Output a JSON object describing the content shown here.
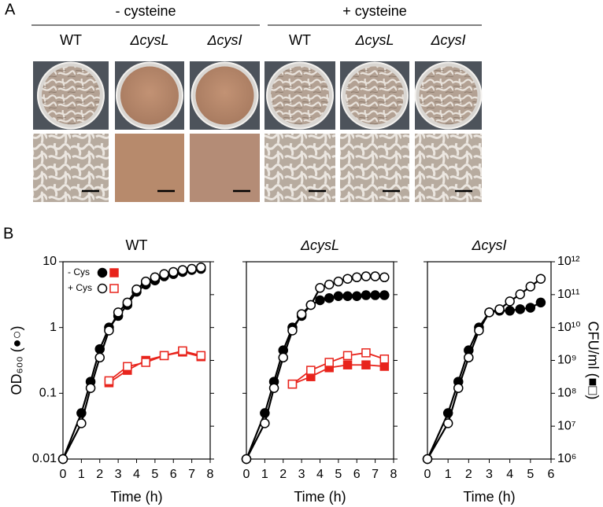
{
  "panel_a": {
    "label": "A",
    "groups": [
      {
        "label": "- cysteine",
        "strains": [
          "WT",
          "ΔcysL",
          "ΔcysI"
        ]
      },
      {
        "label": "+ cysteine",
        "strains": [
          "WT",
          "ΔcysL",
          "ΔcysI"
        ]
      }
    ]
  },
  "panel_b": {
    "label": "B"
  },
  "chart_data": [
    {
      "type": "line",
      "title": "WT",
      "x_label": "Time (h)",
      "y_label": "OD₆₀₀ (●○)",
      "log_y": true,
      "xlim": [
        0,
        8
      ],
      "xticks": [
        0,
        1,
        2,
        3,
        4,
        5,
        6,
        7,
        8
      ],
      "ylim": [
        0.01,
        10
      ],
      "yticks": [
        0.01,
        0.1,
        1,
        10
      ],
      "y2lim": [
        1000000,
        1000000000000
      ],
      "legend": [
        "- Cys",
        "+ Cys"
      ],
      "series": [
        {
          "color": "#000000",
          "marker": "circle",
          "filled": true,
          "x": [
            0,
            1,
            1.5,
            2,
            2.5,
            3,
            3.5,
            4,
            4.5,
            5,
            5.5,
            6,
            6.5,
            7,
            7.5
          ],
          "values": [
            0.01,
            0.05,
            0.15,
            0.47,
            1.0,
            1.5,
            2.2,
            3.5,
            4.5,
            5.2,
            6,
            6.5,
            7,
            7.5,
            7.8
          ]
        },
        {
          "color": "#000000",
          "marker": "circle",
          "filled": false,
          "x": [
            0,
            1,
            1.5,
            2,
            2.5,
            3,
            3.5,
            4,
            4.5,
            5,
            5.5,
            6,
            6.5,
            7,
            7.5
          ],
          "values": [
            0.01,
            0.035,
            0.12,
            0.35,
            0.9,
            1.7,
            2.4,
            3.8,
            5,
            5.8,
            6.5,
            7,
            7.5,
            7.8,
            8.2
          ]
        },
        {
          "color": "#e8241c",
          "marker": "square",
          "filled": true,
          "axis": "y2",
          "x": [
            2.5,
            3.5,
            4.5,
            5.5,
            6.5,
            7.5
          ],
          "values": [
            210000000,
            500000000,
            1000000000,
            1400000000,
            1800000000,
            1300000000
          ]
        },
        {
          "color": "#e8241c",
          "marker": "square",
          "filled": false,
          "axis": "y2",
          "x": [
            2.5,
            3.5,
            4.5,
            5.5,
            6.5,
            7.5
          ],
          "values": [
            240000000,
            650000000,
            870000000,
            1400000000,
            1950000000,
            1400000000
          ]
        }
      ]
    },
    {
      "type": "line",
      "title": "ΔcysL",
      "x_label": "Time (h)",
      "log_y": true,
      "xlim": [
        0,
        8
      ],
      "xticks": [
        0,
        1,
        2,
        3,
        4,
        5,
        6,
        7,
        8
      ],
      "ylim": [
        0.01,
        10
      ],
      "y2lim": [
        1000000,
        1000000000000
      ],
      "series": [
        {
          "color": "#000000",
          "marker": "circle",
          "filled": true,
          "x": [
            0,
            1,
            1.5,
            2,
            2.5,
            3,
            3.5,
            4,
            4.5,
            5,
            5.5,
            6,
            6.5,
            7,
            7.5
          ],
          "values": [
            0.01,
            0.05,
            0.15,
            0.45,
            1.0,
            1.5,
            2.2,
            2.6,
            2.8,
            3,
            3,
            3,
            3.1,
            3.1,
            3.1
          ]
        },
        {
          "color": "#000000",
          "marker": "circle",
          "filled": false,
          "x": [
            0,
            1,
            1.5,
            2,
            2.5,
            3,
            3.5,
            4,
            4.5,
            5,
            5.5,
            6,
            6.5,
            7,
            7.5
          ],
          "values": [
            0.01,
            0.035,
            0.12,
            0.35,
            0.9,
            1.6,
            2.2,
            4.0,
            4.5,
            5,
            5.5,
            5.8,
            6,
            6,
            5.8
          ]
        },
        {
          "color": "#e8241c",
          "marker": "square",
          "filled": true,
          "axis": "y2",
          "x": [
            2.5,
            3.5,
            4.5,
            5.5,
            6.5,
            7.5
          ],
          "values": [
            190000000,
            320000000,
            600000000,
            730000000,
            730000000,
            660000000
          ]
        },
        {
          "color": "#e8241c",
          "marker": "square",
          "filled": false,
          "axis": "y2",
          "x": [
            2.5,
            3.5,
            4.5,
            5.5,
            6.5,
            7.5
          ],
          "values": [
            190000000,
            500000000,
            870000000,
            1400000000,
            1700000000,
            1100000000
          ]
        }
      ]
    },
    {
      "type": "line",
      "title": "ΔcysI",
      "x_label": "Time (h)",
      "y2_label": "CFU/ml (■□)",
      "log_y": true,
      "xlim": [
        0,
        6
      ],
      "xticks": [
        0,
        1,
        2,
        3,
        4,
        5,
        6
      ],
      "ylim": [
        0.01,
        10
      ],
      "y2lim": [
        1000000,
        1000000000000
      ],
      "y2ticks": [
        {
          "value": 1000000,
          "label": "10⁶"
        },
        {
          "value": 10000000,
          "label": "10⁷"
        },
        {
          "value": 100000000,
          "label": "10⁸"
        },
        {
          "value": 1000000000,
          "label": "10⁹"
        },
        {
          "value": 10000000000,
          "label": "10¹⁰"
        },
        {
          "value": 100000000000,
          "label": "10¹¹"
        },
        {
          "value": 1000000000000,
          "label": "10¹²"
        }
      ],
      "series": [
        {
          "color": "#000000",
          "marker": "circle",
          "filled": true,
          "x": [
            0,
            1,
            1.5,
            2,
            2.5,
            3,
            3.5,
            4,
            4.5,
            5,
            5.5
          ],
          "values": [
            0.01,
            0.05,
            0.15,
            0.45,
            1.0,
            1.7,
            1.8,
            1.8,
            1.9,
            2.0,
            2.4
          ]
        },
        {
          "color": "#000000",
          "marker": "circle",
          "filled": false,
          "x": [
            0,
            1,
            1.5,
            2,
            2.5,
            3,
            3.5,
            4,
            4.5,
            5,
            5.5
          ],
          "values": [
            0.01,
            0.035,
            0.12,
            0.35,
            0.9,
            1.7,
            1.9,
            2.5,
            3.2,
            4.2,
            5.5
          ]
        }
      ]
    }
  ]
}
